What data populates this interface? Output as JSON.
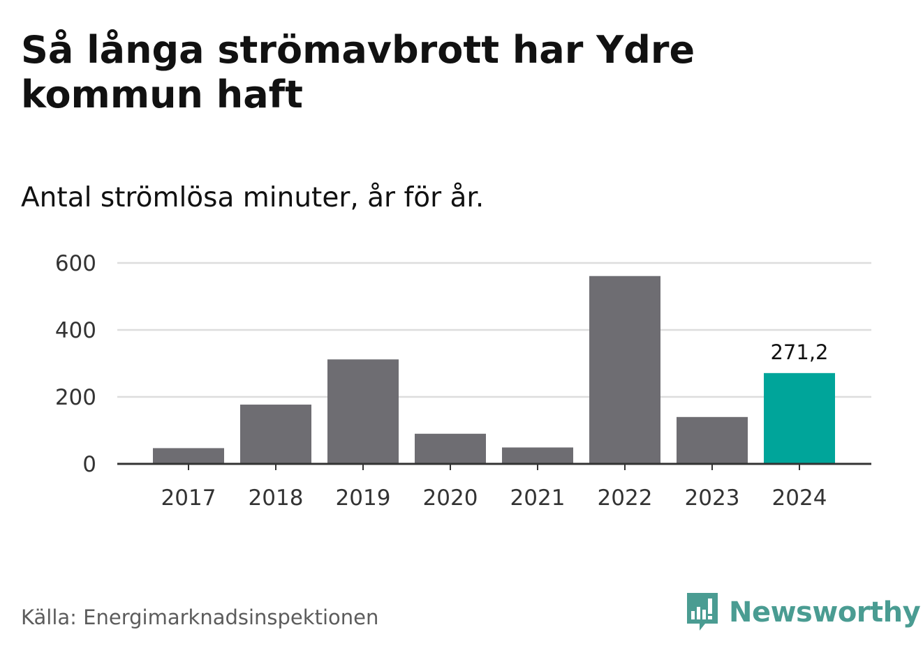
{
  "title": "Så långa strömavbrott har Ydre kommun haft",
  "subtitle": "Antal strömlösa minuter, år för år.",
  "source": "Källa: Energimarknadsinspektionen",
  "brand": {
    "name": "Newsworthy",
    "logo_icon": "newsworthy-chart-bubble-icon",
    "color": "#4a9c92"
  },
  "colors": {
    "bar": "#6e6d72",
    "highlight": "#00a59a",
    "grid": "#dddddd",
    "axis": "#333333"
  },
  "chart_data": {
    "type": "bar",
    "title": "Så långa strömavbrott har Ydre kommun haft",
    "subtitle": "Antal strömlösa minuter, år för år.",
    "categories": [
      "2017",
      "2018",
      "2019",
      "2020",
      "2021",
      "2022",
      "2023",
      "2024"
    ],
    "values": [
      47,
      177,
      312,
      90,
      49,
      561,
      140,
      271.2
    ],
    "highlight_index": 7,
    "data_labels": [
      {
        "index": 7,
        "text": "271,2"
      }
    ],
    "yticks": [
      0,
      200,
      400,
      600
    ],
    "ytick_labels": [
      "0",
      "200",
      "400",
      "600"
    ],
    "ylim": [
      0,
      600
    ],
    "xlabel": "",
    "ylabel": "",
    "grid": true
  }
}
